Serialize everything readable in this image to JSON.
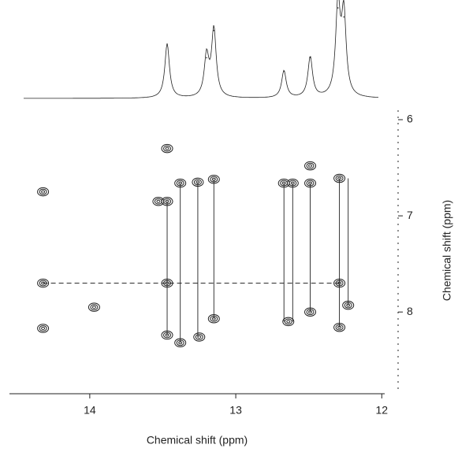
{
  "chart_data": {
    "type": "contour",
    "x_label": "Chemical shift (ppm)",
    "y_label": "Chemical shift (ppm)",
    "xlim": [
      14.55,
      11.98
    ],
    "xticks": [
      14,
      13,
      12
    ],
    "ylim": [
      5.82,
      8.85
    ],
    "yticks": [
      6,
      7,
      8
    ],
    "color": "#222222",
    "peaks": [
      {
        "x": 14.32,
        "y": 6.75
      },
      {
        "x": 14.32,
        "y": 7.7
      },
      {
        "x": 14.32,
        "y": 8.17
      },
      {
        "x": 13.97,
        "y": 7.95
      },
      {
        "x": 13.53,
        "y": 6.85
      },
      {
        "x": 13.47,
        "y": 6.3
      },
      {
        "x": 13.47,
        "y": 6.85
      },
      {
        "x": 13.47,
        "y": 7.7
      },
      {
        "x": 13.47,
        "y": 8.24
      },
      {
        "x": 13.38,
        "y": 6.66
      },
      {
        "x": 13.38,
        "y": 8.32
      },
      {
        "x": 13.26,
        "y": 6.65
      },
      {
        "x": 13.25,
        "y": 8.26
      },
      {
        "x": 13.15,
        "y": 6.62
      },
      {
        "x": 13.15,
        "y": 8.07
      },
      {
        "x": 12.67,
        "y": 6.66
      },
      {
        "x": 12.64,
        "y": 8.1
      },
      {
        "x": 12.61,
        "y": 6.66
      },
      {
        "x": 12.49,
        "y": 6.48
      },
      {
        "x": 12.49,
        "y": 6.66
      },
      {
        "x": 12.49,
        "y": 8.0
      },
      {
        "x": 12.29,
        "y": 6.61
      },
      {
        "x": 12.29,
        "y": 7.7
      },
      {
        "x": 12.29,
        "y": 8.16
      },
      {
        "x": 12.23,
        "y": 7.93
      }
    ],
    "links": [
      {
        "x": 13.47,
        "y": [
          6.85,
          8.24
        ]
      },
      {
        "x": 13.38,
        "y": [
          6.66,
          8.32
        ]
      },
      {
        "x": 13.26,
        "y": [
          6.65,
          8.26
        ]
      },
      {
        "x": 13.15,
        "y": [
          6.62,
          8.07
        ]
      },
      {
        "x": 12.67,
        "y": [
          6.66,
          8.1
        ]
      },
      {
        "x": 12.61,
        "y": [
          6.66,
          8.1
        ]
      },
      {
        "x": 12.49,
        "y": [
          6.66,
          8.0
        ]
      },
      {
        "x": 12.29,
        "y": [
          6.61,
          8.16
        ]
      },
      {
        "x": 12.23,
        "y": [
          6.61,
          7.93
        ]
      }
    ],
    "reference_line": {
      "y": 7.7,
      "x": [
        14.32,
        12.29
      ]
    },
    "projection": {
      "x": [
        13.47,
        13.2,
        13.15,
        12.67,
        12.49,
        12.3,
        12.26
      ],
      "values": [
        0.6,
        0.45,
        0.75,
        0.3,
        0.45,
        1.0,
        0.9
      ]
    }
  }
}
